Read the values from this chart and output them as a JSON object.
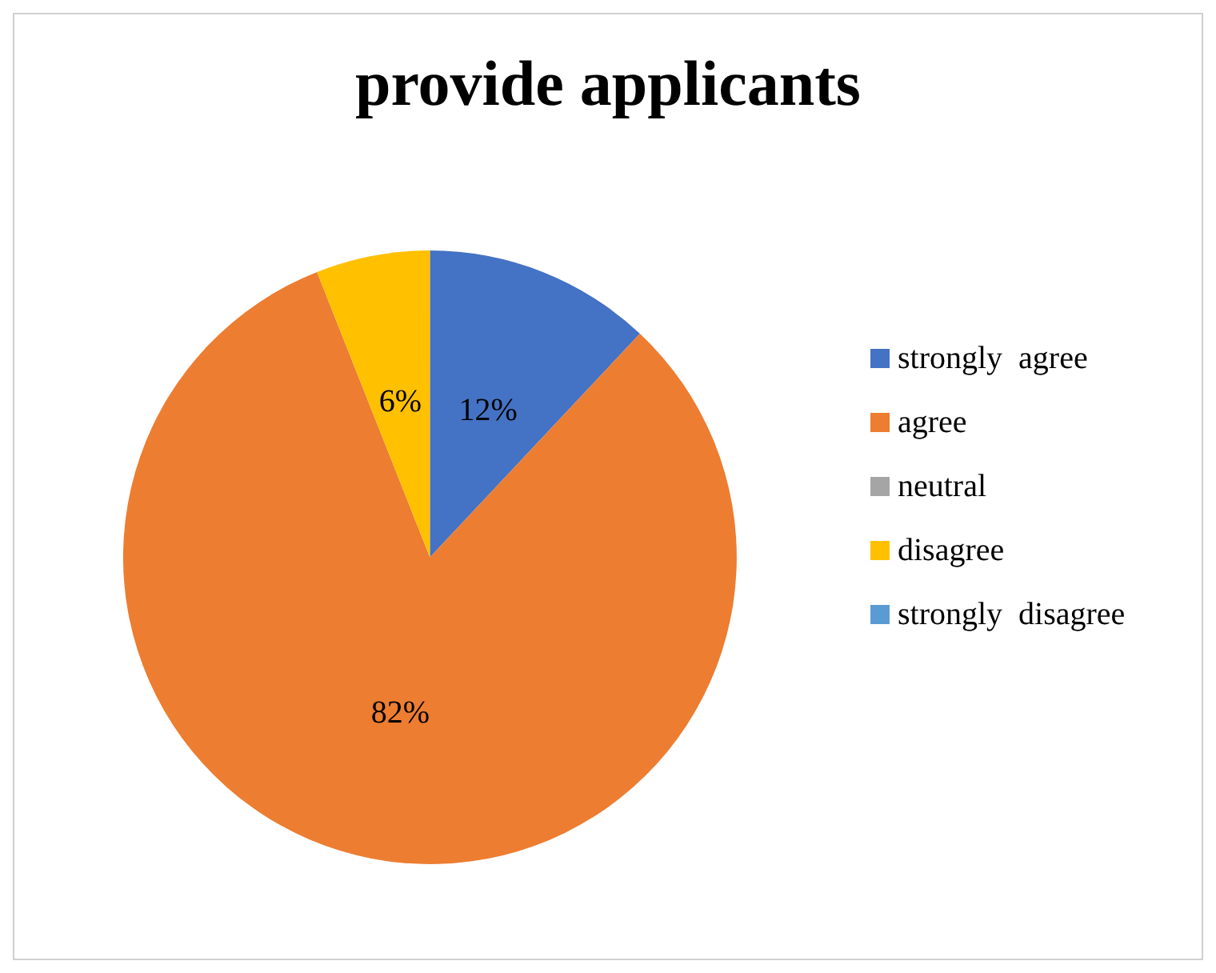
{
  "chart_data": {
    "type": "pie",
    "title": "provide applicants",
    "categories": [
      "strongly  agree",
      "agree",
      "neutral",
      "disagree",
      "strongly  disagree"
    ],
    "values": [
      12,
      82,
      0,
      6,
      0
    ],
    "colors": [
      "#4472c4",
      "#ed7d31",
      "#a5a5a5",
      "#ffc000",
      "#5b9bd5"
    ],
    "value_labels": [
      "12%",
      "82%",
      null,
      "6%",
      null
    ],
    "legend": "right"
  }
}
